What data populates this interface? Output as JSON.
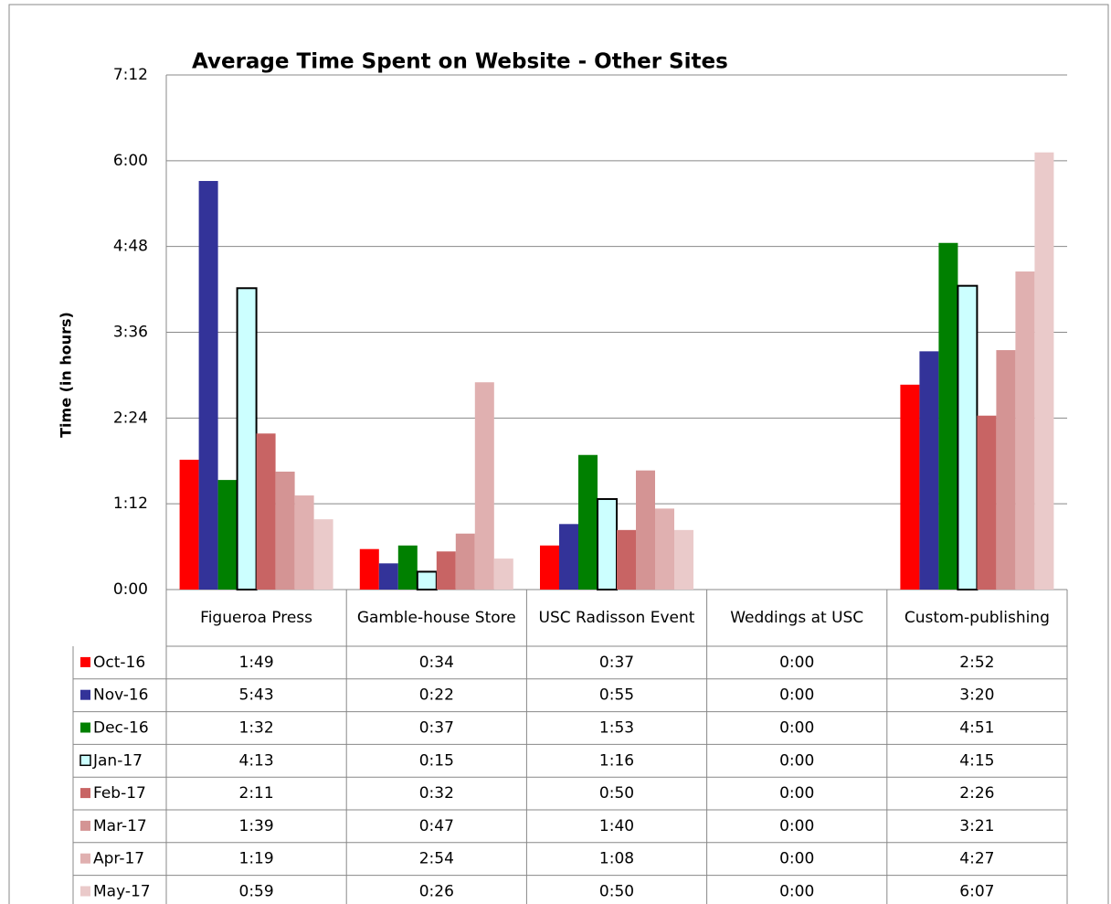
{
  "chart_data": {
    "type": "bar",
    "title": "Average Time Spent on Website - Other Sites",
    "y_label": "Time (in hours)",
    "categories": [
      "Figueroa Press",
      "Gamble-house Store",
      "USC Radisson Event",
      "Weddings at USC",
      "Custom-publishing"
    ],
    "ylim": [
      0,
      432
    ],
    "yticks": [
      {
        "value": 0,
        "label": "0:00"
      },
      {
        "value": 72,
        "label": "1:12"
      },
      {
        "value": 144,
        "label": "2:24"
      },
      {
        "value": 216,
        "label": "3:36"
      },
      {
        "value": 288,
        "label": "4:48"
      },
      {
        "value": 360,
        "label": "6:00"
      },
      {
        "value": 432,
        "label": "7:12"
      }
    ],
    "grid": true,
    "series": [
      {
        "name": "Oct-16",
        "color": "#ff0000",
        "values": [
          109,
          34,
          37,
          0,
          172
        ],
        "value_labels": [
          "1:49",
          "0:34",
          "0:37",
          "0:00",
          "2:52"
        ]
      },
      {
        "name": "Nov-16",
        "color": "#333399",
        "values": [
          343,
          22,
          55,
          0,
          200
        ],
        "value_labels": [
          "5:43",
          "0:22",
          "0:55",
          "0:00",
          "3:20"
        ]
      },
      {
        "name": "Dec-16",
        "color": "#008000",
        "values": [
          92,
          37,
          113,
          0,
          291
        ],
        "value_labels": [
          "1:32",
          "0:37",
          "1:53",
          "0:00",
          "4:51"
        ]
      },
      {
        "name": "Jan-17",
        "color": "#ccffff",
        "values": [
          253,
          15,
          76,
          0,
          255
        ],
        "value_labels": [
          "4:13",
          "0:15",
          "1:16",
          "0:00",
          "4:15"
        ]
      },
      {
        "name": "Feb-17",
        "color": "#c86464",
        "values": [
          131,
          32,
          50,
          0,
          146
        ],
        "value_labels": [
          "2:11",
          "0:32",
          "0:50",
          "0:00",
          "2:26"
        ]
      },
      {
        "name": "Mar-17",
        "color": "#d49494",
        "values": [
          99,
          47,
          100,
          0,
          201
        ],
        "value_labels": [
          "1:39",
          "0:47",
          "1:40",
          "0:00",
          "3:21"
        ]
      },
      {
        "name": "Apr-17",
        "color": "#e0b0b0",
        "values": [
          79,
          174,
          68,
          0,
          267
        ],
        "value_labels": [
          "1:19",
          "2:54",
          "1:08",
          "0:00",
          "4:27"
        ]
      },
      {
        "name": "May-17",
        "color": "#eacaca",
        "values": [
          59,
          26,
          50,
          0,
          367
        ],
        "value_labels": [
          "0:59",
          "0:26",
          "0:50",
          "0:00",
          "6:07"
        ]
      }
    ]
  }
}
